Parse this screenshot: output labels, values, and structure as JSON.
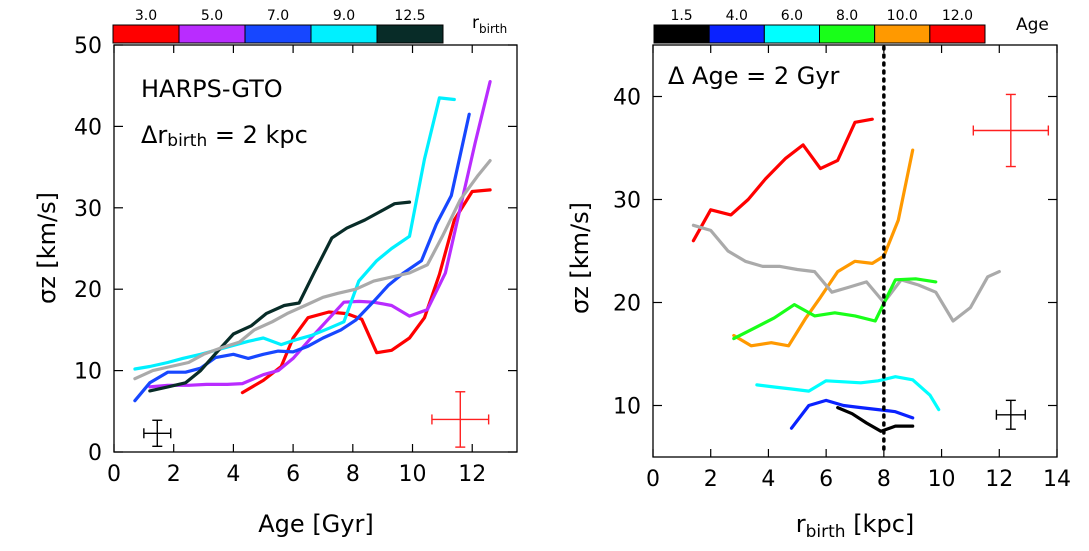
{
  "chart_data": [
    {
      "type": "line",
      "xlabel": "Age [Gyr]",
      "ylabel": "σz [km/s]",
      "xlim": [
        0,
        13.5
      ],
      "ylim": [
        0,
        50
      ],
      "xticks": [
        "0",
        "2",
        "4",
        "6",
        "8",
        "10",
        "12"
      ],
      "yticks": [
        "0",
        "10",
        "20",
        "30",
        "40",
        "50"
      ],
      "annotation": [
        "HARPS-GTO",
        "Δr",
        "birth",
        " = 2 kpc"
      ],
      "colorbar": {
        "title": "r",
        "title_sub": "birth",
        "labels": [
          "3.0",
          "5.0",
          "7.0",
          "9.0",
          "12.5"
        ],
        "colors": [
          "#ff0000",
          "#b92cff",
          "#1747ff",
          "#00f0ff",
          "#082c28"
        ]
      },
      "series": [
        {
          "color": "#ff0000",
          "x": [
            4.3,
            5.0,
            5.6,
            6.0,
            6.5,
            7.2,
            7.8,
            8.3,
            8.8,
            9.3,
            9.9,
            10.4,
            10.9,
            11.4,
            12.0,
            12.6
          ],
          "y": [
            7.3,
            8.8,
            10.5,
            14,
            16.5,
            17.2,
            17,
            16.3,
            12.2,
            12.5,
            14,
            16.5,
            21.8,
            28.5,
            32,
            32.2
          ]
        },
        {
          "color": "#b92cff",
          "x": [
            1.2,
            1.8,
            2.5,
            3.1,
            3.8,
            4.3,
            5.0,
            5.5,
            6.0,
            6.6,
            7.1,
            7.7,
            8.2,
            8.7,
            9.3,
            9.9,
            10.5,
            11.1,
            11.6,
            12.1,
            12.6
          ],
          "y": [
            8.0,
            8.2,
            8.2,
            8.3,
            8.3,
            8.4,
            9.5,
            10,
            11.5,
            14,
            16,
            18.4,
            18.5,
            18.4,
            18,
            16.7,
            17.5,
            22,
            30,
            38,
            45.5
          ]
        },
        {
          "color": "#1747ff",
          "x": [
            0.7,
            1.2,
            1.8,
            2.4,
            2.9,
            3.4,
            4.0,
            4.5,
            5.0,
            5.5,
            6.0,
            6.5,
            7.0,
            7.6,
            8.1,
            8.7,
            9.2,
            9.7,
            10.3,
            10.8,
            11.3,
            11.9
          ],
          "y": [
            6.3,
            8.5,
            9.8,
            9.8,
            10.3,
            11.6,
            12,
            11.5,
            12,
            12.4,
            12.3,
            13,
            14,
            15,
            16.2,
            18.5,
            20.5,
            22,
            23.5,
            28,
            31.5,
            41.5
          ]
        },
        {
          "color": "#00f0ff",
          "x": [
            0.7,
            1.2,
            1.8,
            2.3,
            2.9,
            3.4,
            3.9,
            4.5,
            5.0,
            5.6,
            6.1,
            6.6,
            7.2,
            7.7,
            8.2,
            8.8,
            9.3,
            9.9,
            10.4,
            10.9,
            11.4
          ],
          "y": [
            10.2,
            10.5,
            11,
            11.5,
            12,
            12.5,
            13,
            13.6,
            14,
            13.2,
            13.8,
            14.3,
            15.2,
            16,
            21,
            23.5,
            25,
            26.5,
            36,
            43.5,
            43.3
          ]
        },
        {
          "color": "#082c28",
          "x": [
            1.2,
            1.8,
            2.4,
            2.9,
            3.5,
            4.0,
            4.6,
            5.1,
            5.7,
            6.2,
            6.7,
            7.3,
            7.8,
            8.4,
            8.9,
            9.4,
            9.9
          ],
          "y": [
            7.5,
            8,
            8.5,
            10,
            12.5,
            14.5,
            15.5,
            17,
            18,
            18.3,
            22,
            26.3,
            27.5,
            28.5,
            29.5,
            30.5,
            30.7
          ]
        },
        {
          "color": "#aaaaaa",
          "x": [
            0.7,
            1.3,
            1.9,
            2.5,
            3.0,
            3.6,
            4.2,
            4.7,
            5.3,
            5.8,
            6.4,
            7.0,
            7.5,
            8.1,
            8.7,
            9.3,
            9.9,
            10.5,
            11.0,
            11.6,
            12.2,
            12.6
          ],
          "y": [
            9.0,
            10,
            10.5,
            11,
            12,
            12.8,
            13.5,
            15,
            16,
            17,
            18,
            19,
            19.5,
            20,
            21,
            21.5,
            22,
            23,
            26.5,
            31,
            34,
            35.8
          ]
        }
      ],
      "errorbars": [
        {
          "color": "#000000",
          "x": 1.45,
          "y": 2.3,
          "xerr": 0.45,
          "yerr": 1.6
        },
        {
          "color": "#ff2020",
          "x": 11.6,
          "y": 4.0,
          "xerr": 0.95,
          "yerr": 3.4
        }
      ]
    },
    {
      "type": "line",
      "xlabel": "r_birth [kpc]",
      "xlabel_main": "r",
      "xlabel_sub": "birth",
      "xlabel_tail": " [kpc]",
      "ylabel": "σz [km/s]",
      "xlim": [
        0,
        14
      ],
      "ylim": [
        5,
        45
      ],
      "xticks": [
        "0",
        "2",
        "4",
        "6",
        "8",
        "10",
        "12",
        "14"
      ],
      "yticks": [
        "10",
        "20",
        "30",
        "40"
      ],
      "annotation": "Δ Age = 2 Gyr",
      "vline": 8,
      "colorbar": {
        "title": "Age",
        "labels": [
          "1.5",
          "4.0",
          "6.0",
          "8.0",
          "10.0",
          "12.0"
        ],
        "colors": [
          "#000000",
          "#0a22ff",
          "#00ffff",
          "#19ff19",
          "#ff9900",
          "#ff0000"
        ]
      },
      "series": [
        {
          "color": "#ff0000",
          "x": [
            1.4,
            2.0,
            2.7,
            3.3,
            3.9,
            4.6,
            5.2,
            5.8,
            6.4,
            7.0,
            7.6
          ],
          "y": [
            26,
            29,
            28.5,
            30,
            32,
            34,
            35.3,
            33,
            33.8,
            37.5,
            37.8
          ]
        },
        {
          "color": "#ff9900",
          "x": [
            2.8,
            3.4,
            4.1,
            4.7,
            5.3,
            5.8,
            6.4,
            7.0,
            7.6,
            8.0,
            8.5,
            9.0
          ],
          "y": [
            16.8,
            15.8,
            16.1,
            15.8,
            18.5,
            20.5,
            23,
            24,
            23.8,
            24.5,
            28,
            34.8
          ]
        },
        {
          "color": "#aaaaaa",
          "x": [
            1.4,
            2.0,
            2.6,
            3.2,
            3.8,
            4.4,
            5.0,
            5.6,
            6.2,
            6.8,
            7.4,
            8.0,
            8.6,
            9.2,
            9.8,
            10.4,
            11.0,
            11.6,
            12.0
          ],
          "y": [
            27.5,
            27,
            25,
            24,
            23.5,
            23.5,
            23.2,
            23,
            21,
            21.5,
            22,
            20,
            22.2,
            21.7,
            21,
            18.2,
            19.5,
            22.5,
            23
          ]
        },
        {
          "color": "#19ff19",
          "x": [
            2.8,
            3.5,
            4.2,
            4.9,
            5.6,
            6.3,
            7.0,
            7.7,
            8.4,
            9.1,
            9.8
          ],
          "y": [
            16.5,
            17.5,
            18.5,
            19.8,
            18.7,
            19,
            18.7,
            18.2,
            22.2,
            22.3,
            22
          ]
        },
        {
          "color": "#00ffff",
          "x": [
            3.6,
            4.2,
            4.8,
            5.4,
            6.0,
            6.6,
            7.2,
            7.8,
            8.4,
            9.0,
            9.6,
            9.9
          ],
          "y": [
            12,
            11.8,
            11.6,
            11.4,
            12.4,
            12.3,
            12.2,
            12.4,
            12.8,
            12.5,
            11,
            9.6
          ]
        },
        {
          "color": "#0a22ff",
          "x": [
            4.8,
            5.4,
            6.0,
            6.6,
            7.2,
            7.8,
            8.4,
            9.0
          ],
          "y": [
            7.8,
            10,
            10.5,
            10,
            9.8,
            9.6,
            9.4,
            8.8
          ]
        },
        {
          "color": "#000000",
          "x": [
            6.4,
            6.9,
            7.4,
            7.9,
            8.4,
            9.0
          ],
          "y": [
            9.8,
            9.2,
            8.3,
            7.5,
            8.0,
            8.0
          ]
        }
      ],
      "errorbars": [
        {
          "color": "#000000",
          "x": 12.4,
          "y": 9.1,
          "xerr": 0.5,
          "yerr": 1.4
        },
        {
          "color": "#ff2020",
          "x": 12.4,
          "y": 36.7,
          "xerr": 1.3,
          "yerr": 3.5
        }
      ]
    }
  ]
}
